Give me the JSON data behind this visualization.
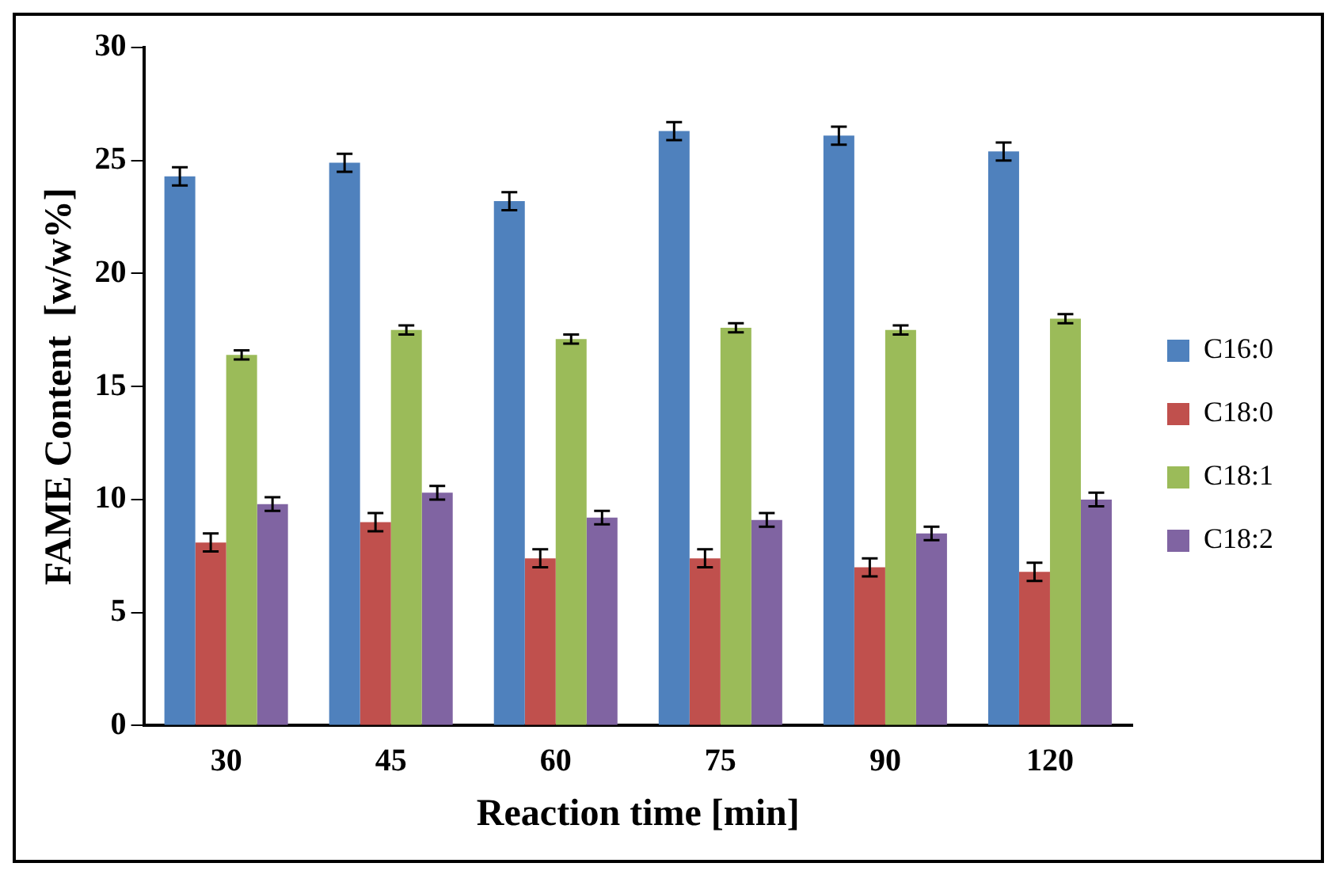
{
  "chart_data": {
    "type": "bar",
    "xlabel": "Reaction time [min]",
    "ylabel": "FAME Content  [w/w%]",
    "categories": [
      "30",
      "45",
      "60",
      "75",
      "90",
      "120"
    ],
    "series": [
      {
        "name": "C16:0",
        "color": "#4f81bd",
        "values": [
          24.3,
          24.9,
          23.2,
          26.3,
          26.1,
          25.4
        ],
        "errors": [
          0.4,
          0.4,
          0.4,
          0.4,
          0.4,
          0.4
        ]
      },
      {
        "name": "C18:0",
        "color": "#c0504d",
        "values": [
          8.1,
          9.0,
          7.4,
          7.4,
          7.0,
          6.8
        ],
        "errors": [
          0.4,
          0.4,
          0.4,
          0.4,
          0.4,
          0.4
        ]
      },
      {
        "name": "C18:1",
        "color": "#9bbb59",
        "values": [
          16.4,
          17.5,
          17.1,
          17.6,
          17.5,
          18.0
        ],
        "errors": [
          0.2,
          0.2,
          0.2,
          0.2,
          0.2,
          0.2
        ]
      },
      {
        "name": "C18:2",
        "color": "#8064a2",
        "values": [
          9.8,
          10.3,
          9.2,
          9.1,
          8.5,
          10.0
        ],
        "errors": [
          0.3,
          0.3,
          0.3,
          0.3,
          0.3,
          0.3
        ]
      }
    ],
    "ylim": [
      0,
      30
    ],
    "yticks": [
      0,
      5,
      10,
      15,
      20,
      25,
      30
    ],
    "grid": false,
    "legend": "right"
  }
}
